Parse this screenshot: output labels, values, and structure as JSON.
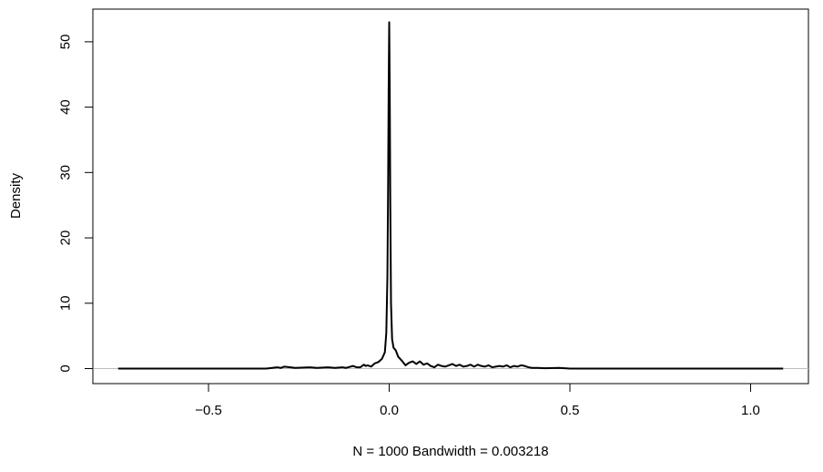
{
  "chart_data": {
    "type": "line",
    "title": "",
    "xlabel": "N = 1000   Bandwidth = 0.003218",
    "ylabel": "Density",
    "xlim": [
      -0.82,
      1.16
    ],
    "ylim": [
      -2.3,
      55.0
    ],
    "x_ticks": [
      -0.5,
      0.0,
      0.5,
      1.0
    ],
    "x_tick_labels": [
      "−0.5",
      "0.0",
      "0.5",
      "1.0"
    ],
    "y_ticks": [
      0,
      10,
      20,
      30,
      40,
      50
    ],
    "y_tick_labels": [
      "0",
      "10",
      "20",
      "30",
      "40",
      "50"
    ],
    "grid": false,
    "legend": "none",
    "zero_line": true,
    "line_color": "#000000",
    "zero_line_color": "#bebebe",
    "series": [
      {
        "x": [
          -0.75,
          -0.65,
          -0.5,
          -0.4,
          -0.34,
          -0.31,
          -0.3,
          -0.29,
          -0.26,
          -0.22,
          -0.2,
          -0.17,
          -0.15,
          -0.13,
          -0.12,
          -0.1,
          -0.09,
          -0.08,
          -0.07,
          -0.065,
          -0.06,
          -0.05,
          -0.04,
          -0.03,
          -0.02,
          -0.012,
          -0.008,
          -0.005,
          -0.003,
          -0.0015,
          0.0,
          0.0015,
          0.003,
          0.005,
          0.008,
          0.012,
          0.018,
          0.025,
          0.035,
          0.045,
          0.055,
          0.065,
          0.075,
          0.085,
          0.095,
          0.105,
          0.115,
          0.125,
          0.135,
          0.145,
          0.155,
          0.165,
          0.175,
          0.185,
          0.195,
          0.205,
          0.215,
          0.225,
          0.235,
          0.245,
          0.255,
          0.265,
          0.275,
          0.285,
          0.295,
          0.305,
          0.315,
          0.325,
          0.335,
          0.345,
          0.355,
          0.365,
          0.375,
          0.385,
          0.395,
          0.41,
          0.43,
          0.47,
          0.5,
          0.6,
          0.7,
          0.8,
          0.9,
          1.0,
          1.05,
          1.09
        ],
        "y": [
          0,
          0,
          0,
          0,
          0,
          0.2,
          0.1,
          0.3,
          0.1,
          0.2,
          0.1,
          0.2,
          0.1,
          0.2,
          0.1,
          0.4,
          0.2,
          0.2,
          0.6,
          0.4,
          0.5,
          0.3,
          0.8,
          1.0,
          1.5,
          2.5,
          5.5,
          14.0,
          28.0,
          43.0,
          53.0,
          42.0,
          25.0,
          10.0,
          4.5,
          3.2,
          2.8,
          1.8,
          1.2,
          0.5,
          0.9,
          1.1,
          0.7,
          1.1,
          0.6,
          0.8,
          0.4,
          0.2,
          0.6,
          0.4,
          0.3,
          0.5,
          0.7,
          0.4,
          0.6,
          0.3,
          0.4,
          0.6,
          0.3,
          0.6,
          0.4,
          0.3,
          0.5,
          0.2,
          0.3,
          0.4,
          0.3,
          0.5,
          0.2,
          0.4,
          0.3,
          0.5,
          0.4,
          0.2,
          0.1,
          0.1,
          0.05,
          0.1,
          0,
          0,
          0,
          0,
          0,
          0,
          0,
          0
        ]
      }
    ]
  }
}
